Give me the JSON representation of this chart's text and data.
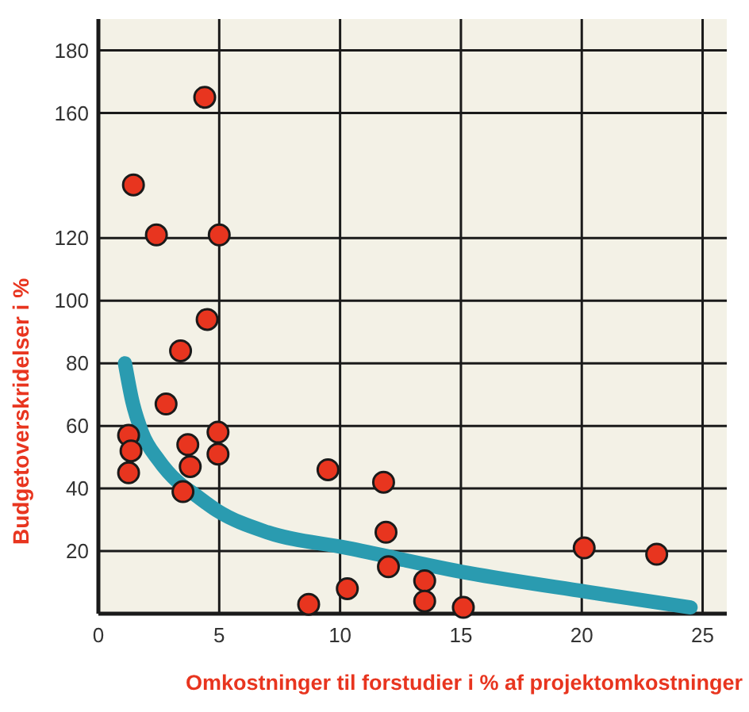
{
  "chart_data": {
    "type": "scatter",
    "xlabel": "Omkostninger til forstudier i % af projektomkostninger",
    "ylabel": "Budgetoverskridelser i %",
    "xlim": [
      0,
      26
    ],
    "ylim": [
      0,
      190
    ],
    "xticks": [
      0,
      5,
      10,
      15,
      20,
      25
    ],
    "yticks": [
      20,
      40,
      60,
      80,
      100,
      120,
      160,
      180
    ],
    "grid": true,
    "marker": "circle",
    "series": [
      {
        "color": "#e8351f",
        "x": [
          4.4,
          1.45,
          2.4,
          5.0,
          4.5,
          3.4,
          2.8,
          1.25,
          1.35,
          1.25,
          3.7,
          3.8,
          3.5,
          4.95,
          4.95,
          9.5,
          8.7,
          10.3,
          11.8,
          11.9,
          12.0,
          13.5,
          13.5,
          15.1,
          20.1,
          23.1
        ],
        "values": [
          165,
          137,
          121,
          121,
          94,
          84,
          67,
          57,
          52,
          45,
          54,
          47,
          39,
          58,
          51,
          46,
          3,
          8,
          42,
          26,
          15,
          10.5,
          4,
          2,
          21,
          19
        ]
      },
      {
        "type": "line",
        "color": "#2a9bb0",
        "marker": "none",
        "line_style": "solid",
        "x": [
          1.1,
          1.4,
          1.8,
          2.5,
          3.3,
          4.0,
          4.9,
          7.0,
          10.3,
          15.3,
          20.2,
          24.5
        ],
        "values": [
          80,
          68,
          58,
          49,
          42,
          38,
          33,
          26,
          21,
          13,
          7,
          2
        ]
      }
    ]
  }
}
